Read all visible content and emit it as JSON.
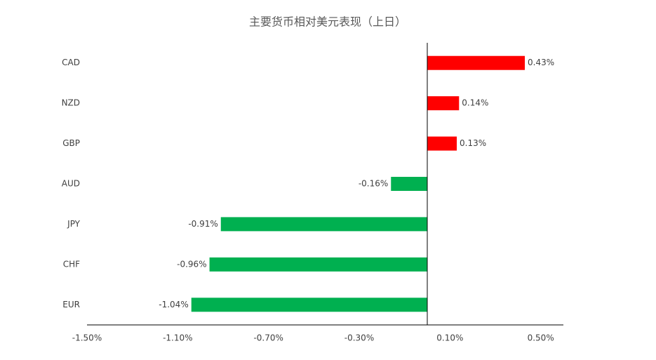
{
  "chart_data": {
    "type": "hbar",
    "title": "主要货币相对美元表现（上日）",
    "categories": [
      "CAD",
      "NZD",
      "GBP",
      "AUD",
      "JPY",
      "CHF",
      "EUR"
    ],
    "values": [
      0.43,
      0.14,
      0.13,
      -0.16,
      -0.91,
      -0.96,
      -1.04
    ],
    "value_labels": [
      "0.43%",
      "0.14%",
      "0.13%",
      "-0.16%",
      "-0.91%",
      "-0.96%",
      "-1.04%"
    ],
    "colors": [
      "#ff0000",
      "#ff0000",
      "#ff0000",
      "#00b050",
      "#00b050",
      "#00b050",
      "#00b050"
    ],
    "xlim": [
      -1.5,
      0.6
    ],
    "xticks": [
      {
        "value": -1.5,
        "label": "-1.50%"
      },
      {
        "value": -1.1,
        "label": "-1.10%"
      },
      {
        "value": -0.7,
        "label": "-0.70%"
      },
      {
        "value": -0.3,
        "label": "-0.30%"
      },
      {
        "value": 0.1,
        "label": "0.10%"
      },
      {
        "value": 0.5,
        "label": "0.50%"
      }
    ]
  }
}
